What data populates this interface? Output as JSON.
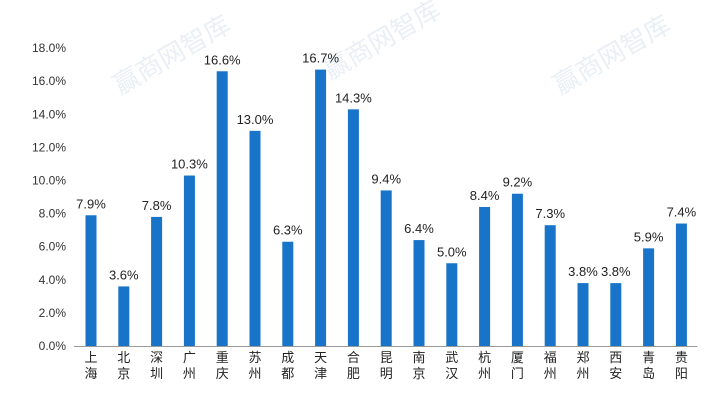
{
  "chart_data": {
    "type": "bar",
    "categories": [
      "上海",
      "北京",
      "深圳",
      "广州",
      "重庆",
      "苏州",
      "成都",
      "天津",
      "合肥",
      "昆明",
      "南京",
      "武汉",
      "杭州",
      "厦门",
      "福州",
      "郑州",
      "西安",
      "青岛",
      "贵阳"
    ],
    "values": [
      7.9,
      3.6,
      7.8,
      10.3,
      16.6,
      13.0,
      6.3,
      16.7,
      14.3,
      9.4,
      6.4,
      5.0,
      8.4,
      9.2,
      7.3,
      3.8,
      3.8,
      5.9,
      7.4
    ],
    "data_labels": [
      "7.9%",
      "3.6%",
      "7.8%",
      "10.3%",
      "16.6%",
      "13.0%",
      "6.3%",
      "16.7%",
      "14.3%",
      "9.4%",
      "6.4%",
      "5.0%",
      "8.4%",
      "9.2%",
      "7.3%",
      "3.8%",
      "3.8%",
      "5.9%",
      "7.4%"
    ],
    "y_ticks": [
      "0.0%",
      "2.0%",
      "4.0%",
      "6.0%",
      "8.0%",
      "10.0%",
      "12.0%",
      "14.0%",
      "16.0%",
      "18.0%"
    ],
    "ylim": [
      0,
      18
    ],
    "grid": false,
    "legend": "none",
    "bar_color": "#1874c8",
    "axis_color": "#9a9a9a",
    "watermark": "赢商网智库"
  }
}
